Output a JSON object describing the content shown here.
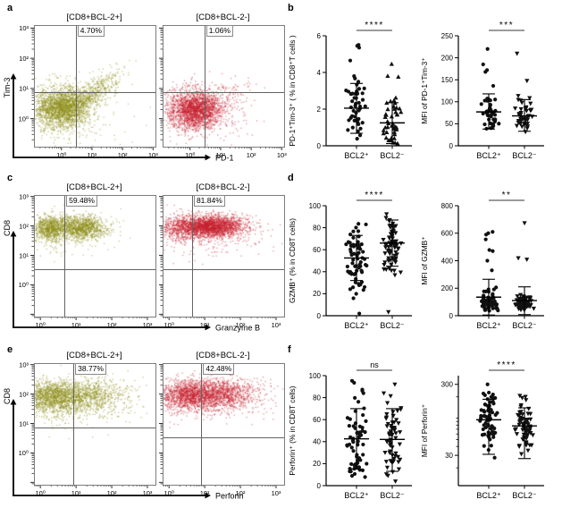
{
  "figure": {
    "panel_labels": {
      "a": "a",
      "b": "b",
      "c": "c",
      "d": "d",
      "e": "e",
      "f": "f"
    }
  },
  "colors": {
    "bcl2_pos": "#8e8e17",
    "bcl2_neg": "#c8202e",
    "axis": "#000000",
    "gate": "#636363",
    "sig_bar": "#7a7a7a",
    "marker": "#111111"
  },
  "chart_data": {
    "a": {
      "type": "scatter",
      "subtype": "flow-cytometry-quadrant",
      "xlabel": "PD-1",
      "ylabel": "Tim-3",
      "tick_labels": [
        "10⁰",
        "10¹",
        "10²",
        "10³"
      ],
      "xrange": [
        -0.9,
        3.05
      ],
      "yrange": [
        -0.9,
        3.1
      ],
      "arrow_top": 60,
      "ylabel_cy": 70,
      "plots": [
        {
          "title": "[CD8+BCL-2+]",
          "quadrant_pct": "4.70%",
          "color_key": "bcl2_pos",
          "gate_x": 0.44,
          "gate_y": 0.9,
          "clusters": [
            {
              "cx": -0.05,
              "cy": 0.42,
              "sx": 0.45,
              "sy": 0.33,
              "n": 2100,
              "corr": 0
            },
            {
              "cx": 0.85,
              "cy": 0.85,
              "sx": 0.5,
              "sy": 0.38,
              "n": 550,
              "corr": 0.8
            },
            {
              "cx": 0.3,
              "cy": 0.2,
              "sx": 0.9,
              "sy": 0.6,
              "n": 300,
              "corr": 0
            }
          ]
        },
        {
          "title": "[CD8+BCL-2-]",
          "quadrant_pct": "1.06%",
          "color_key": "bcl2_neg",
          "gate_x": 0.44,
          "gate_y": 0.9,
          "clusters": [
            {
              "cx": 0.1,
              "cy": 0.35,
              "sx": 0.42,
              "sy": 0.32,
              "n": 2300,
              "corr": 0
            },
            {
              "cx": 0.85,
              "cy": 0.55,
              "sx": 0.55,
              "sy": 0.35,
              "n": 220,
              "corr": 0.5
            },
            {
              "cx": 0.4,
              "cy": 0.15,
              "sx": 0.8,
              "sy": 0.5,
              "n": 160,
              "corr": 0
            }
          ]
        }
      ]
    },
    "b": {
      "type": "scatter",
      "subtype": "dot-plot-with-mean-sd",
      "plots": [
        {
          "ylabel": "PD-1⁺Tim-3⁺ ( % in CD8⁺T cells )",
          "significance": "****",
          "ymin": 0,
          "ymax": 6,
          "yticks": [
            0,
            2,
            4,
            6
          ],
          "groups": [
            {
              "label": "BCL2⁺",
              "marker": "circle",
              "n": 50,
              "mean": 2.05,
              "sd_low": 0.68,
              "sd_high": 3.4,
              "gen": {
                "mu": 1.9,
                "sigma": 1.05,
                "min": 0.1,
                "max": 4.3
              },
              "outliers": [
                5.5,
                5.45,
                5.35,
                4.65
              ]
            },
            {
              "label": "BCL2⁻",
              "marker": "triangle-up",
              "n": 45,
              "mean": 1.25,
              "sd_low": 0.12,
              "sd_high": 2.35,
              "gen": {
                "mu": 1.15,
                "sigma": 0.85,
                "min": 0.05,
                "max": 3.3
              },
              "outliers": [
                4.45,
                3.8,
                3.75
              ]
            }
          ]
        },
        {
          "ylabel": "MFI of PD-1⁺Tim-3⁺",
          "significance": "***",
          "ymin": 0,
          "ymax": 250,
          "yticks": [
            0,
            50,
            100,
            150,
            200,
            250
          ],
          "groups": [
            {
              "label": "BCL2⁺",
              "marker": "circle",
              "n": 48,
              "mean": 77,
              "sd_low": 38,
              "sd_high": 118,
              "gen": {
                "mu": 70,
                "sigma": 28,
                "min": 33,
                "max": 140
              },
              "outliers": [
                220,
                185,
                172,
                168
              ]
            },
            {
              "label": "BCL2⁻",
              "marker": "triangle-down",
              "n": 46,
              "mean": 68,
              "sd_low": 33,
              "sd_high": 105,
              "gen": {
                "mu": 62,
                "sigma": 25,
                "min": 32,
                "max": 135
              },
              "outliers": [
                210,
                148
              ]
            }
          ]
        }
      ]
    },
    "c": {
      "type": "scatter",
      "subtype": "flow-cytometry-quadrant",
      "xlabel": "Granzyme B",
      "ylabel": "CD8",
      "tick_labels": [
        "10⁰",
        "10¹",
        "10²",
        "10³"
      ],
      "xrange": [
        -0.18,
        3.2
      ],
      "yrange": [
        -1.05,
        3.05
      ],
      "arrow_top": 46,
      "ylabel_cy": 37,
      "plots": [
        {
          "title": "[CD8+BCL-2+]",
          "quadrant_pct": "59.48%",
          "color_key": "bcl2_pos",
          "gate_x": 0.65,
          "gate_y": 0.57,
          "clusters": [
            {
              "cx": 0.18,
              "cy": 1.97,
              "sx": 0.22,
              "sy": 0.2,
              "n": 700,
              "corr": 0
            },
            {
              "cx": 1.05,
              "cy": 2.0,
              "sx": 0.4,
              "sy": 0.2,
              "n": 1200,
              "corr": 0
            },
            {
              "cx": 0.6,
              "cy": 1.8,
              "sx": 0.65,
              "sy": 0.33,
              "n": 260,
              "corr": 0
            }
          ]
        },
        {
          "title": "[CD8+BCL-2-]",
          "quadrant_pct": "81.84%",
          "color_key": "bcl2_neg",
          "gate_x": 0.62,
          "gate_y": 0.57,
          "clusters": [
            {
              "cx": 1.15,
              "cy": 2.03,
              "sx": 0.45,
              "sy": 0.18,
              "n": 2300,
              "corr": 0
            },
            {
              "cx": 0.25,
              "cy": 1.97,
              "sx": 0.32,
              "sy": 0.24,
              "n": 480,
              "corr": 0
            },
            {
              "cx": 0.9,
              "cy": 1.8,
              "sx": 0.85,
              "sy": 0.35,
              "n": 320,
              "corr": 0
            }
          ]
        }
      ]
    },
    "d": {
      "type": "scatter",
      "subtype": "dot-plot-with-mean-sd",
      "plots": [
        {
          "ylabel": "GZMB⁺ (% in CD8T cells)",
          "significance": "****",
          "ymin": 0,
          "ymax": 100,
          "yticks": [
            0,
            20,
            40,
            60,
            80,
            100
          ],
          "groups": [
            {
              "label": "BCL2⁺",
              "marker": "circle",
              "n": 68,
              "mean": 52.5,
              "sd_low": 32,
              "sd_high": 73,
              "gen": {
                "mu": 52,
                "sigma": 16,
                "min": 13,
                "max": 85
              },
              "outliers": [
                2
              ]
            },
            {
              "label": "BCL2⁻",
              "marker": "triangle-down",
              "n": 70,
              "mean": 66,
              "sd_low": 45,
              "sd_high": 87,
              "gen": {
                "mu": 67,
                "sigma": 16,
                "min": 21,
                "max": 93
              },
              "outliers": [
                3.5
              ]
            }
          ]
        },
        {
          "ylabel": "MFI of GZMB⁺",
          "significance": "**",
          "ymin": 0,
          "ymax": 800,
          "yticks": [
            0,
            200,
            400,
            600,
            800
          ],
          "groups": [
            {
              "label": "BCL2⁺",
              "marker": "circle",
              "n": 66,
              "mean": 135,
              "sd_low": 5,
              "sd_high": 265,
              "gen": {
                "mu": 100,
                "sigma": 45,
                "min": 35,
                "max": 210
              },
              "outliers": [
                330,
                400,
                470,
                478,
                555,
                590,
                600,
                610
              ]
            },
            {
              "label": "BCL2⁻",
              "marker": "triangle-down",
              "n": 70,
              "mean": 110,
              "sd_low": 8,
              "sd_high": 210,
              "gen": {
                "mu": 92,
                "sigma": 40,
                "min": 28,
                "max": 205
              },
              "outliers": [
                410,
                420,
                675
              ]
            }
          ]
        }
      ]
    },
    "e": {
      "type": "scatter",
      "subtype": "flow-cytometry-quadrant",
      "xlabel": "Perforin",
      "ylabel": "CD8",
      "tick_labels": [
        "10⁰",
        "10¹",
        "10²",
        "10³"
      ],
      "xrange": [
        -0.18,
        3.2
      ],
      "yrange": [
        -1.05,
        3.05
      ],
      "arrow_top": 46,
      "ylabel_cy": 37,
      "plots": [
        {
          "title": "[CD8+BCL-2+]",
          "quadrant_pct": "38.77%",
          "color_key": "bcl2_pos",
          "gate_x": 0.9,
          "gate_y": 0.88,
          "clusters": [
            {
              "cx": 0.25,
              "cy": 1.95,
              "sx": 0.5,
              "sy": 0.28,
              "n": 1500,
              "corr": 0
            },
            {
              "cx": 1.3,
              "cy": 2.0,
              "sx": 0.55,
              "sy": 0.28,
              "n": 850,
              "corr": 0
            },
            {
              "cx": 0.8,
              "cy": 1.7,
              "sx": 0.95,
              "sy": 0.4,
              "n": 280,
              "corr": 0
            }
          ]
        },
        {
          "title": "[CD8+BCL-2-]",
          "quadrant_pct": "42.48%",
          "color_key": "bcl2_neg",
          "gate_x": 0.88,
          "gate_y": 0.55,
          "clusters": [
            {
              "cx": 0.5,
              "cy": 2.02,
              "sx": 0.45,
              "sy": 0.24,
              "n": 1400,
              "corr": 0
            },
            {
              "cx": 1.45,
              "cy": 2.05,
              "sx": 0.55,
              "sy": 0.24,
              "n": 1050,
              "corr": 0
            },
            {
              "cx": 1.0,
              "cy": 1.78,
              "sx": 0.95,
              "sy": 0.38,
              "n": 320,
              "corr": 0
            }
          ]
        }
      ]
    },
    "f": {
      "type": "scatter",
      "subtype": "dot-plot-with-mean-sd",
      "plots": [
        {
          "ylabel": "Perforin⁺ (% in CD8T cells)",
          "significance": "ns",
          "ymin": 0,
          "ymax": 100,
          "yticks": [
            0,
            20,
            40,
            60,
            80,
            100
          ],
          "groups": [
            {
              "label": "BCL2⁺",
              "marker": "circle",
              "n": 62,
              "mean": 42.5,
              "sd_low": 15,
              "sd_high": 70,
              "gen": {
                "mu": 42,
                "sigma": 28,
                "min": 2,
                "max": 100
              },
              "outliers": []
            },
            {
              "label": "BCL2⁻",
              "marker": "triangle-down",
              "n": 60,
              "mean": 42,
              "sd_low": 13,
              "sd_high": 70,
              "gen": {
                "mu": 42,
                "sigma": 28,
                "min": 2,
                "max": 100
              },
              "outliers": []
            }
          ]
        },
        {
          "ylabel": "MFI of Perforin⁺",
          "significance": "****",
          "log": true,
          "logmin": 1.05,
          "logmax": 2.6,
          "yticks_log": [
            {
              "v": 300,
              "label": "300"
            },
            {
              "v": 30,
              "label": "30"
            }
          ],
          "minor_ticks": [
            20,
            40,
            50,
            60,
            70,
            80,
            90,
            100,
            200
          ],
          "groups": [
            {
              "label": "BCL2⁺",
              "marker": "circle",
              "n": 70,
              "mean": 95,
              "sd_low": 31,
              "sd_high": 185,
              "gen": {
                "mu": 1.97,
                "sigma": 0.2,
                "min": 1.23,
                "max": 2.5
              },
              "outliers": []
            },
            {
              "label": "BCL2⁻",
              "marker": "triangle-down",
              "n": 66,
              "mean": 78,
              "sd_low": 27,
              "sd_high": 140,
              "gen": {
                "mu": 1.87,
                "sigma": 0.2,
                "min": 1.17,
                "max": 2.46
              },
              "outliers": []
            }
          ]
        }
      ]
    }
  }
}
